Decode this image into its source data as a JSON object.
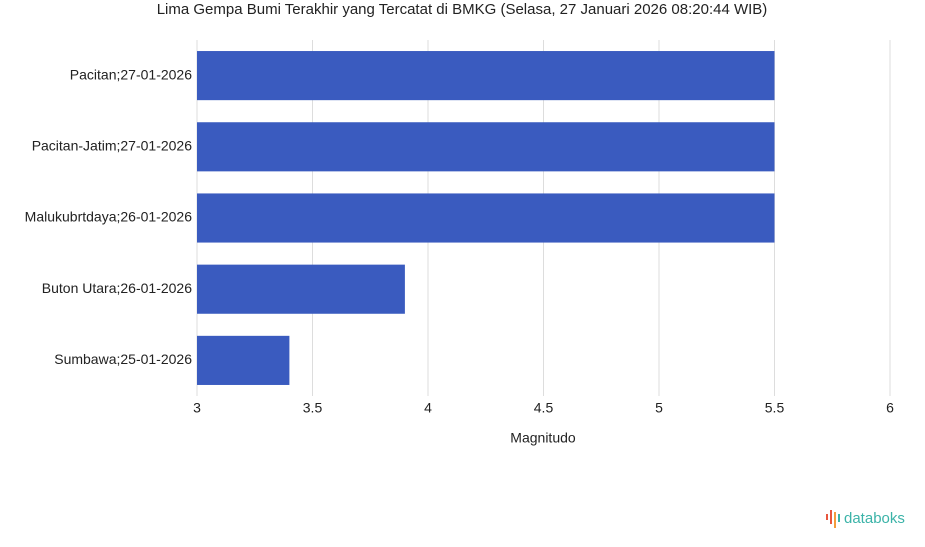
{
  "chart_data": {
    "type": "barh",
    "title": "Lima Gempa Bumi Terakhir yang Tercatat di BMKG (Selasa, 27 Januari 2026 08:20:44 WIB)",
    "categories": [
      "Pacitan;27-01-2026",
      "Pacitan-Jatim;27-01-2026",
      "Malukubrtdaya;26-01-2026",
      "Buton Utara;26-01-2026",
      "Sumbawa;25-01-2026"
    ],
    "values": [
      5.5,
      5.5,
      5.5,
      3.9,
      3.4
    ],
    "color": "#3a5bbf",
    "xlabel": "Magnitudo",
    "xlim": [
      3,
      6
    ],
    "xticks": [
      3,
      3.5,
      4,
      4.5,
      5,
      5.5,
      6
    ],
    "grid": true
  },
  "logo": "databoks"
}
